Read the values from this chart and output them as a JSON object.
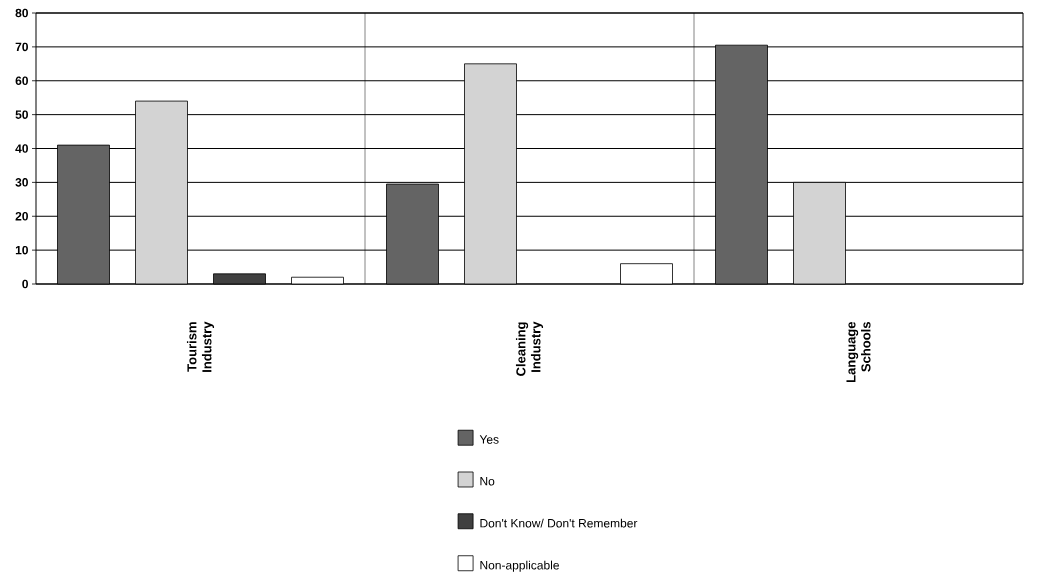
{
  "chart_data": {
    "type": "bar",
    "categories": [
      "Tourism Industry",
      "Cleaning Industry",
      "Language Schools"
    ],
    "series": [
      {
        "name": "Yes",
        "color": "#646464",
        "values": [
          41,
          29.5,
          70.5
        ]
      },
      {
        "name": "No",
        "color": "#d3d3d3",
        "values": [
          54,
          65,
          30
        ]
      },
      {
        "name": "Don't Know/ Don't Remember",
        "color": "#404040",
        "values": [
          3,
          0,
          0
        ]
      },
      {
        "name": "Non-applicable",
        "color": "#ffffff",
        "values": [
          2,
          6,
          0
        ]
      }
    ],
    "ylim": [
      0,
      80
    ],
    "yticks": [
      0,
      10,
      20,
      30,
      40,
      50,
      60,
      70,
      80
    ],
    "grid": true,
    "legend": "bottom"
  }
}
